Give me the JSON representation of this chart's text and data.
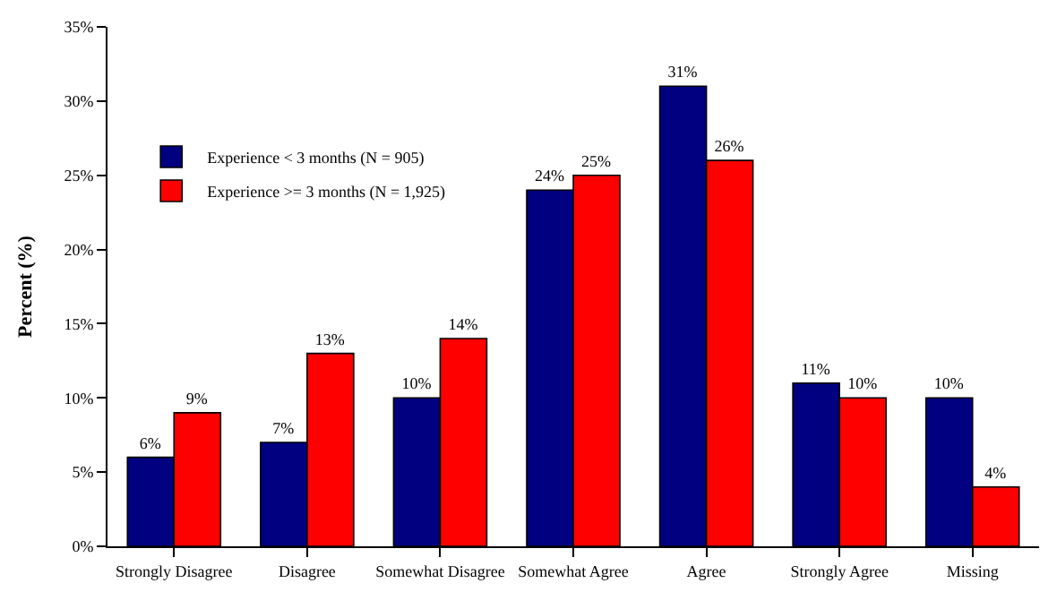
{
  "chart_data": {
    "type": "bar",
    "ylabel": "Percent (%)",
    "categories": [
      "Strongly Disagree",
      "Disagree",
      "Somewhat Disagree",
      "Somewhat Agree",
      "Agree",
      "Strongly Agree",
      "Missing"
    ],
    "series": [
      {
        "name": "Experience < 3 months (N = 905)",
        "color": "#000080",
        "values": [
          6,
          7,
          10,
          24,
          31,
          11,
          10
        ],
        "value_labels": [
          "6%",
          "7%",
          "10%",
          "24%",
          "31%",
          "11%",
          "10%"
        ]
      },
      {
        "name": "Experience >= 3 months (N = 1,925)",
        "color": "#ff0000",
        "values": [
          9,
          13,
          14,
          25,
          26,
          10,
          4
        ],
        "value_labels": [
          "9%",
          "13%",
          "14%",
          "25%",
          "26%",
          "10%",
          "4%"
        ]
      }
    ],
    "ylim": [
      0,
      35
    ],
    "yticks": [
      {
        "value": 0,
        "label": "0%"
      },
      {
        "value": 5,
        "label": "5%"
      },
      {
        "value": 10,
        "label": "10%"
      },
      {
        "value": 15,
        "label": "15%"
      },
      {
        "value": 20,
        "label": "20%"
      },
      {
        "value": 25,
        "label": "25%"
      },
      {
        "value": 30,
        "label": "30%"
      },
      {
        "value": 35,
        "label": "35%"
      }
    ],
    "grid": false,
    "legend": "top left"
  }
}
